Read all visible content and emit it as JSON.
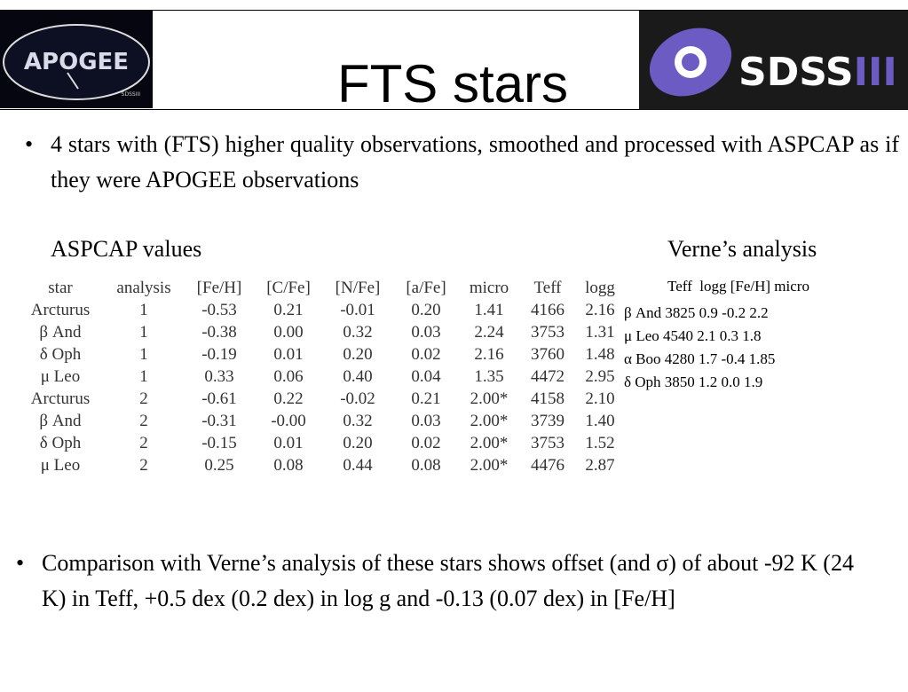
{
  "header": {
    "title": "FTS stars",
    "left_logo": "APOGEE",
    "left_logo_small": "SDSSIII",
    "right_logo": "SDSS",
    "right_logo_suffix": "III"
  },
  "bullets": [
    "4 stars with (FTS) higher quality observations, smoothed and processed with ASPCAP as if they were APOGEE observations",
    "Comparison with Verne’s analysis of these stars shows offset (and σ) of about -92 K (24 K) in Teff, +0.5 dex (0.2 dex) in log g and -0.13 (0.07 dex) in [Fe/H]"
  ],
  "aspcap": {
    "heading": "ASPCAP values",
    "table": {
      "columns": [
        "star",
        "analysis",
        "[Fe/H]",
        "[C/Fe]",
        "[N/Fe]",
        "[a/Fe]",
        "micro",
        "Teff",
        "logg"
      ],
      "rows": [
        [
          "Arcturus",
          "1",
          "-0.53",
          "0.21",
          "-0.01",
          "0.20",
          "1.41",
          "4166",
          "2.16"
        ],
        [
          "β And",
          "1",
          "-0.38",
          "0.00",
          "0.32",
          "0.03",
          "2.24",
          "3753",
          "1.31"
        ],
        [
          "δ Oph",
          "1",
          "-0.19",
          "0.01",
          "0.20",
          "0.02",
          "2.16",
          "3760",
          "1.48"
        ],
        [
          "μ Leo",
          "1",
          "0.33",
          "0.06",
          "0.40",
          "0.04",
          "1.35",
          "4472",
          "2.95"
        ],
        [
          "Arcturus",
          "2",
          "-0.61",
          "0.22",
          "-0.02",
          "0.21",
          "2.00*",
          "4158",
          "2.10"
        ],
        [
          "β And",
          "2",
          "-0.31",
          "-0.00",
          "0.32",
          "0.03",
          "2.00*",
          "3739",
          "1.40"
        ],
        [
          "δ Oph",
          "2",
          "-0.15",
          "0.01",
          "0.20",
          "0.02",
          "2.00*",
          "3753",
          "1.52"
        ],
        [
          "μ Leo",
          "2",
          "0.25",
          "0.08",
          "0.44",
          "0.08",
          "2.00*",
          "4476",
          "2.87"
        ]
      ]
    }
  },
  "verne": {
    "heading": "Verne’s analysis",
    "columns": "Teff  logg [Fe/H] micro",
    "lines": [
      "β And 3825 0.9 -0.2 2.2",
      "μ Leo 4540 2.1 0.3 1.8",
      "α Boo 4280 1.7 -0.4 1.85",
      "δ Oph 3850 1.2 0.0 1.9"
    ]
  }
}
